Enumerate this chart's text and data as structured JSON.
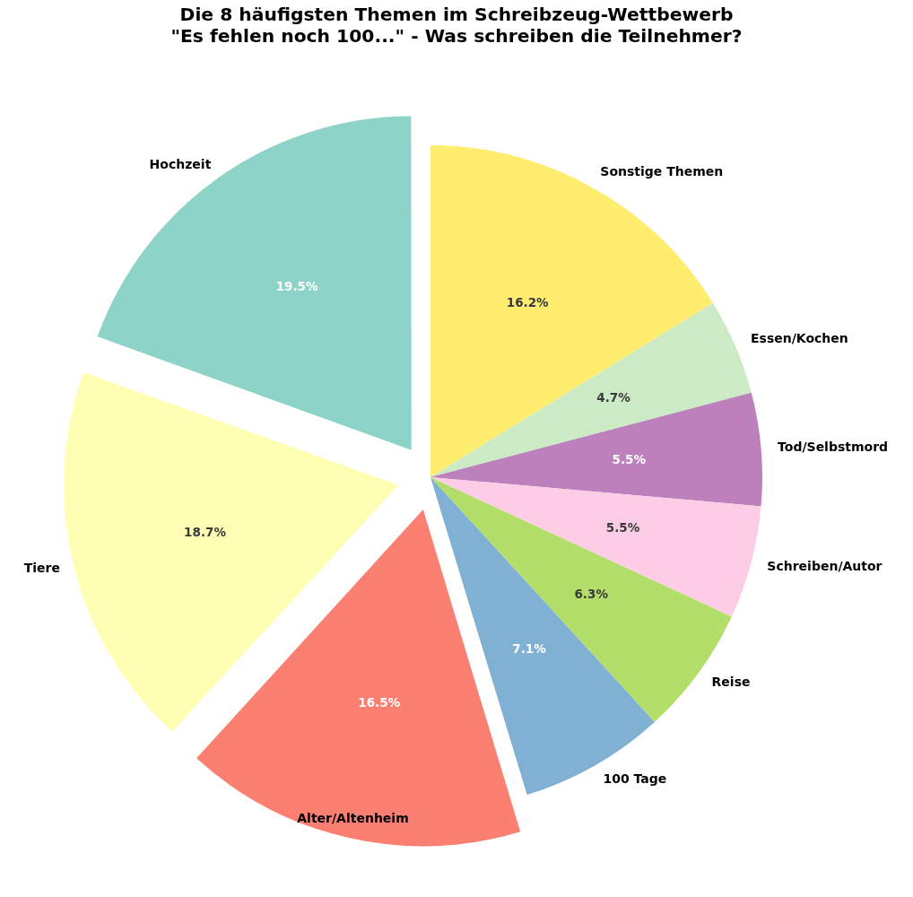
{
  "chart_data": {
    "type": "pie",
    "title": "Die 8 häufigsten Themen im Schreibzeug-Wettbewerb\n\"Es fehlen noch 100...\" - Was schreiben die Teilnehmer?",
    "categories": [
      "Sonstige Themen",
      "Essen/Kochen",
      "Tod/Selbstmord",
      "Schreiben/Autor",
      "Reise",
      "100 Tage",
      "Alter/Altenheim",
      "Tiere",
      "Hochzeit"
    ],
    "values": [
      16.2,
      4.7,
      5.5,
      5.5,
      6.3,
      7.1,
      16.5,
      18.7,
      19.5
    ],
    "colors": [
      "#ffed6f",
      "#ccebc5",
      "#bc80bd",
      "#fccde5",
      "#b3de69",
      "#80b1d3",
      "#fb8072",
      "#ffffb3",
      "#8dd3c7"
    ],
    "value_labels": [
      "16.2%",
      "4.7%",
      "5.5%",
      "5.5%",
      "6.3%",
      "7.1%",
      "16.5%",
      "18.7%",
      "19.5%"
    ]
  }
}
